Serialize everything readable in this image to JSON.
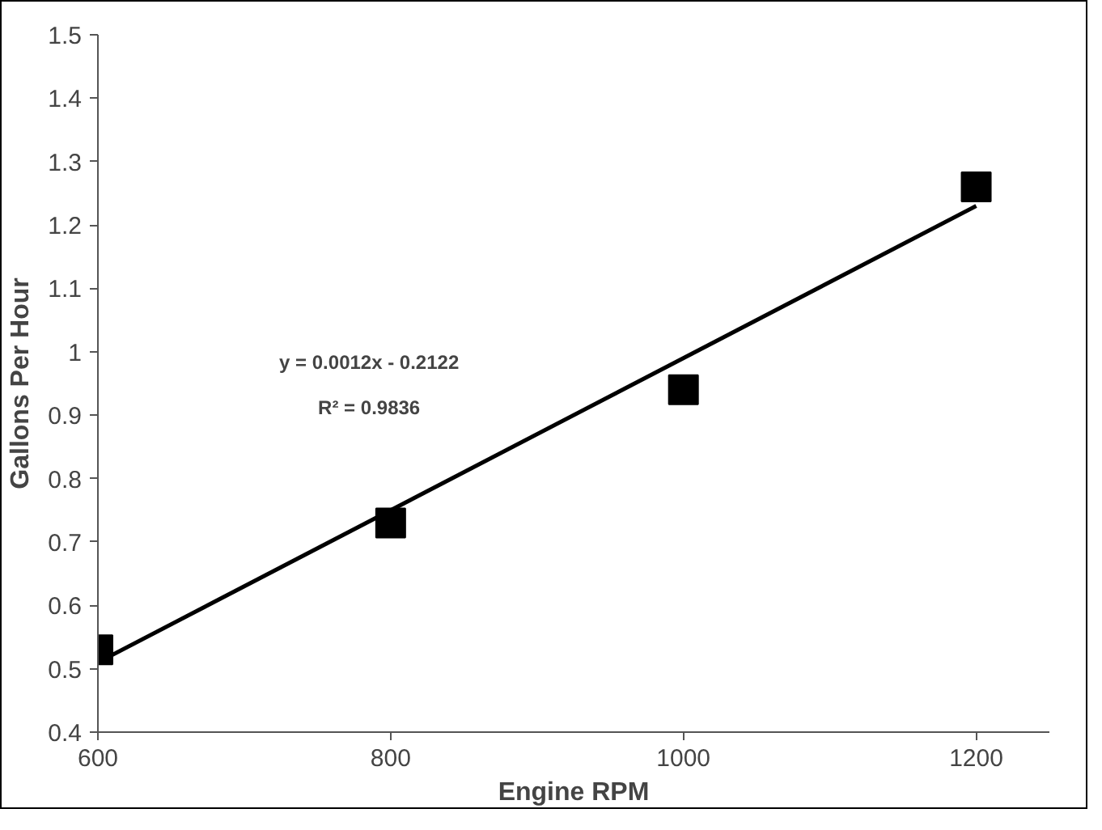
{
  "chart_data": {
    "type": "scatter",
    "xlabel": "Engine RPM",
    "ylabel": "Gallons Per Hour",
    "annotations": [
      "y = 0.0012x - 0.2122",
      "R² = 0.9836"
    ],
    "series": [
      {
        "color": "#000000",
        "marker": "square",
        "x": [
          600,
          800,
          1000,
          1200
        ],
        "values": [
          0.53,
          0.73,
          0.94,
          1.26
        ]
      },
      {
        "type": "line",
        "color": "#000000",
        "line_style": "solid",
        "x": [
          600,
          1200
        ],
        "values": [
          0.51,
          1.23
        ]
      }
    ],
    "xlim": [
      600,
      1250
    ],
    "xticks": [
      600,
      800,
      1000,
      1200
    ],
    "ylim": [
      0.4,
      1.5
    ],
    "yticks": [
      0.4,
      0.5,
      0.6,
      0.7,
      0.8,
      0.9,
      1,
      1.1,
      1.2,
      1.3,
      1.4,
      1.5
    ],
    "grid": false
  }
}
